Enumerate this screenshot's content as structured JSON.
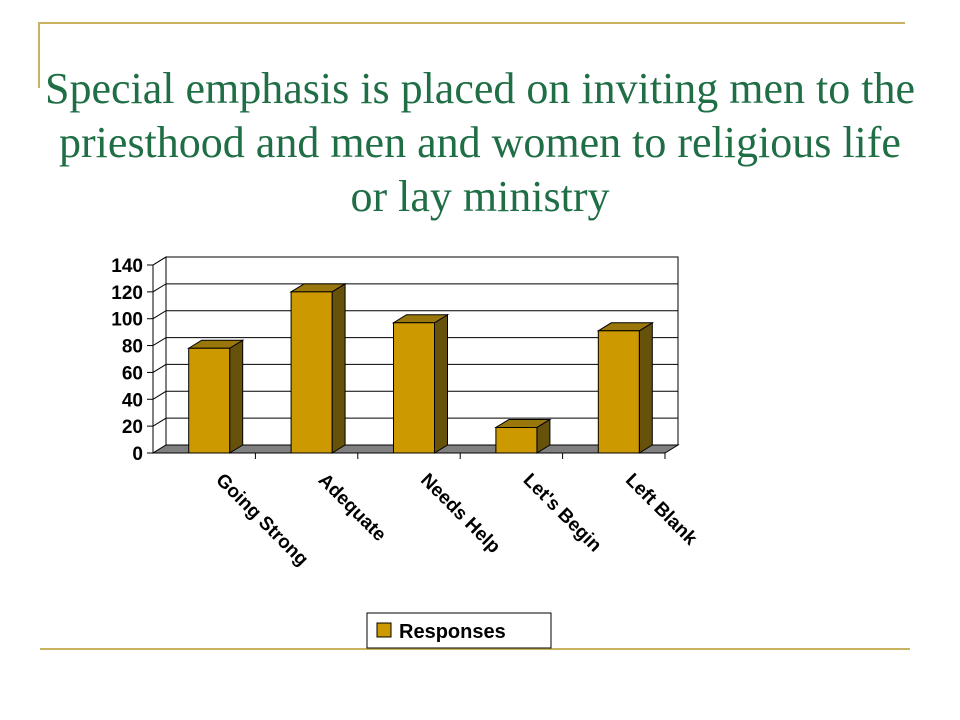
{
  "slide": {
    "title": "Special emphasis is placed on inviting men to the priesthood and men and women to religious life or lay ministry"
  },
  "colors": {
    "title": "#1f6e45",
    "frame": "#c8b460",
    "bar_front": "#cc9900",
    "bar_top": "#99770a",
    "bar_side": "#66520a",
    "floor": "#808080"
  },
  "chart_data": {
    "type": "bar",
    "categories": [
      "Going Strong",
      "Adequate",
      "Needs Help",
      "Let's Begin",
      "Left Blank"
    ],
    "series": [
      {
        "name": "Responses",
        "values": [
          78,
          120,
          97,
          19,
          91
        ]
      }
    ],
    "ylim": [
      0,
      140
    ],
    "yticks": [
      "0",
      "20",
      "40",
      "60",
      "80",
      "100",
      "120",
      "140"
    ],
    "grid": true,
    "legend_position": "bottom",
    "xlabel": "",
    "ylabel": ""
  }
}
